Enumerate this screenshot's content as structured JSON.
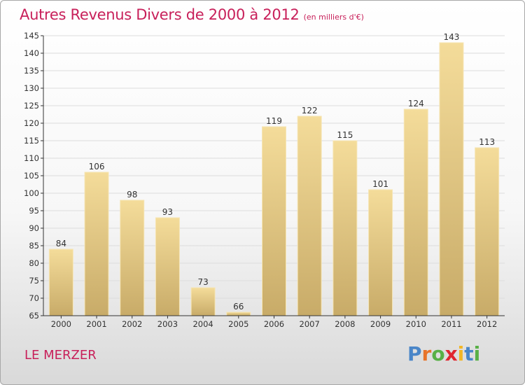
{
  "chart_data": {
    "type": "bar",
    "title": "Autres Revenus Divers de 2000 à 2012",
    "subtitle": "(en milliers d'€)",
    "xlabel": "",
    "ylabel": "",
    "categories": [
      "2000",
      "2001",
      "2002",
      "2003",
      "2004",
      "2005",
      "2006",
      "2007",
      "2008",
      "2009",
      "2010",
      "2011",
      "2012"
    ],
    "values": [
      84,
      106,
      98,
      93,
      73,
      66,
      119,
      122,
      115,
      101,
      124,
      143,
      113
    ],
    "ylim": [
      65,
      145
    ],
    "yticks": [
      65,
      70,
      75,
      80,
      85,
      90,
      95,
      100,
      105,
      110,
      115,
      120,
      125,
      130,
      135,
      140,
      145
    ],
    "grid": true,
    "bar_color": "#e8cd85",
    "legend": "none"
  },
  "footer": {
    "place": "LE MERZER",
    "logo": [
      {
        "ch": "P",
        "color": "#4a86c8"
      },
      {
        "ch": "r",
        "color": "#e8742a"
      },
      {
        "ch": "o",
        "color": "#58b046"
      },
      {
        "ch": "x",
        "color": "#e0262f"
      },
      {
        "ch": "i",
        "color": "#f2b625"
      },
      {
        "ch": "t",
        "color": "#4a86c8"
      },
      {
        "ch": "i",
        "color": "#58b046"
      }
    ]
  },
  "colors": {
    "accent": "#c8205a",
    "axis": "#333333",
    "grid": "#dcdcdc"
  }
}
